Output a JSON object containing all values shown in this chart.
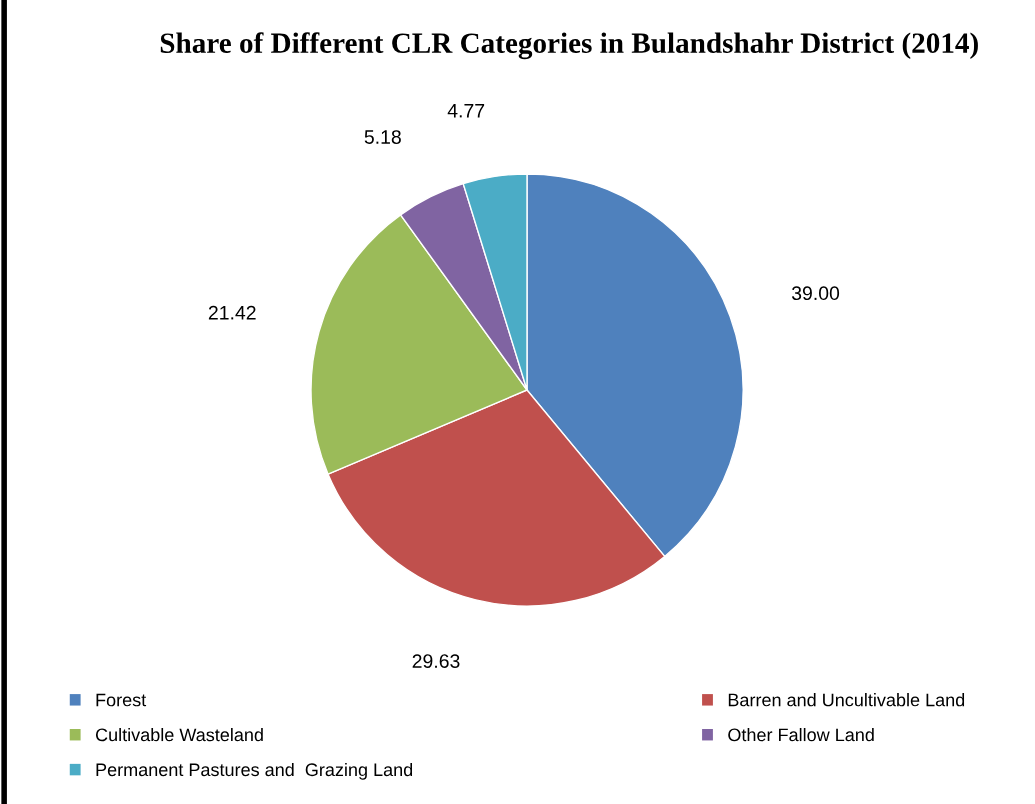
{
  "chart_data": {
    "type": "pie",
    "title": "Share of Different CLR Categories in Bulandshahr District (2014)",
    "categories": [
      "Forest",
      "Barren and Uncultivable Land",
      "Cultivable Wasteland",
      "Other Fallow Land",
      "Permanent Pastures and  Grazing Land"
    ],
    "values": [
      39.0,
      29.63,
      21.42,
      5.18,
      4.77
    ],
    "value_labels": [
      "39.00",
      "29.63",
      "21.42",
      "5.18",
      "4.77"
    ],
    "colors": [
      "#4f81bd",
      "#c0504d",
      "#9bbb59",
      "#8064a2",
      "#4bacc6"
    ],
    "legend": "bottom"
  }
}
